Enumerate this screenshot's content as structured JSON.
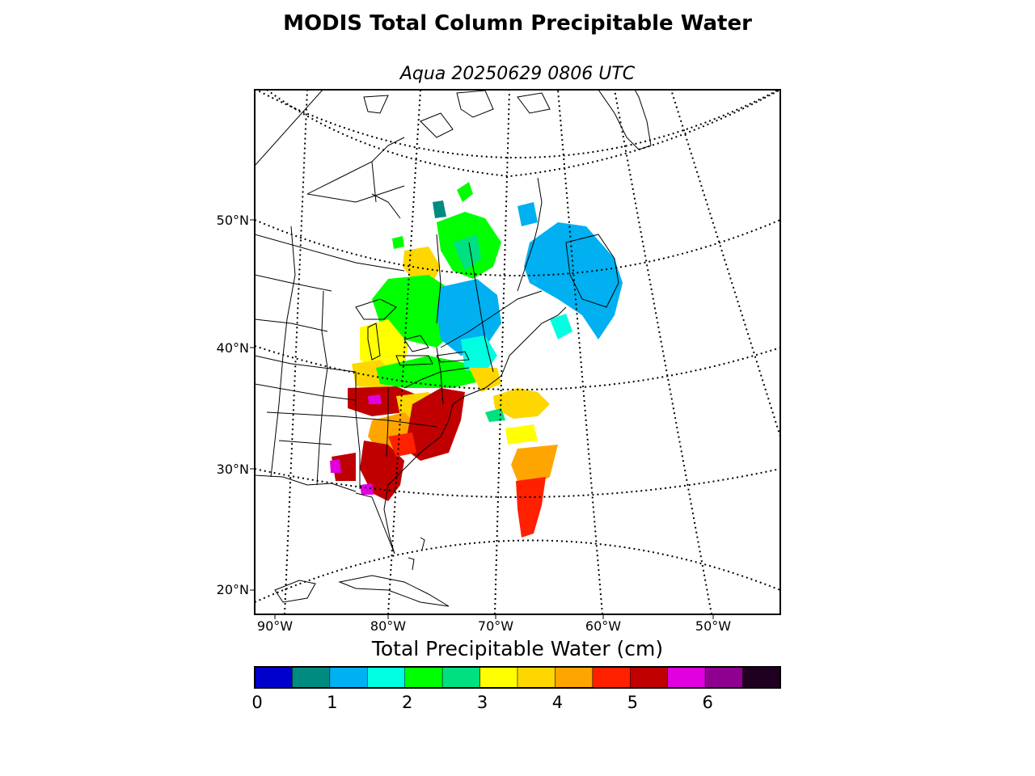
{
  "title": "MODIS Total Column Precipitable Water",
  "subtitle": "Aqua 20250629 0806 UTC",
  "map": {
    "projection": "lambert-conformal",
    "lat_labels": [
      "50°N",
      "40°N",
      "30°N",
      "20°N"
    ],
    "lon_labels": [
      "90°W",
      "80°W",
      "70°W",
      "60°W",
      "50°W"
    ],
    "gridline_style": "dotted",
    "land_fill": "#ffffff",
    "coastline_color": "#000000"
  },
  "colorbar": {
    "label": "Total Precipitable Water (cm)",
    "min": 0,
    "max": 7,
    "bin_width_cm": 0.5,
    "colors": [
      "#0000cc",
      "#008b80",
      "#00b0f0",
      "#00ffe0",
      "#00ff00",
      "#00e080",
      "#ffff00",
      "#ffd700",
      "#ffa500",
      "#ff2000",
      "#c00000",
      "#e000e0",
      "#900090",
      "#200020"
    ],
    "tick_labels": [
      "0",
      "1",
      "2",
      "3",
      "4",
      "5",
      "6"
    ]
  }
}
